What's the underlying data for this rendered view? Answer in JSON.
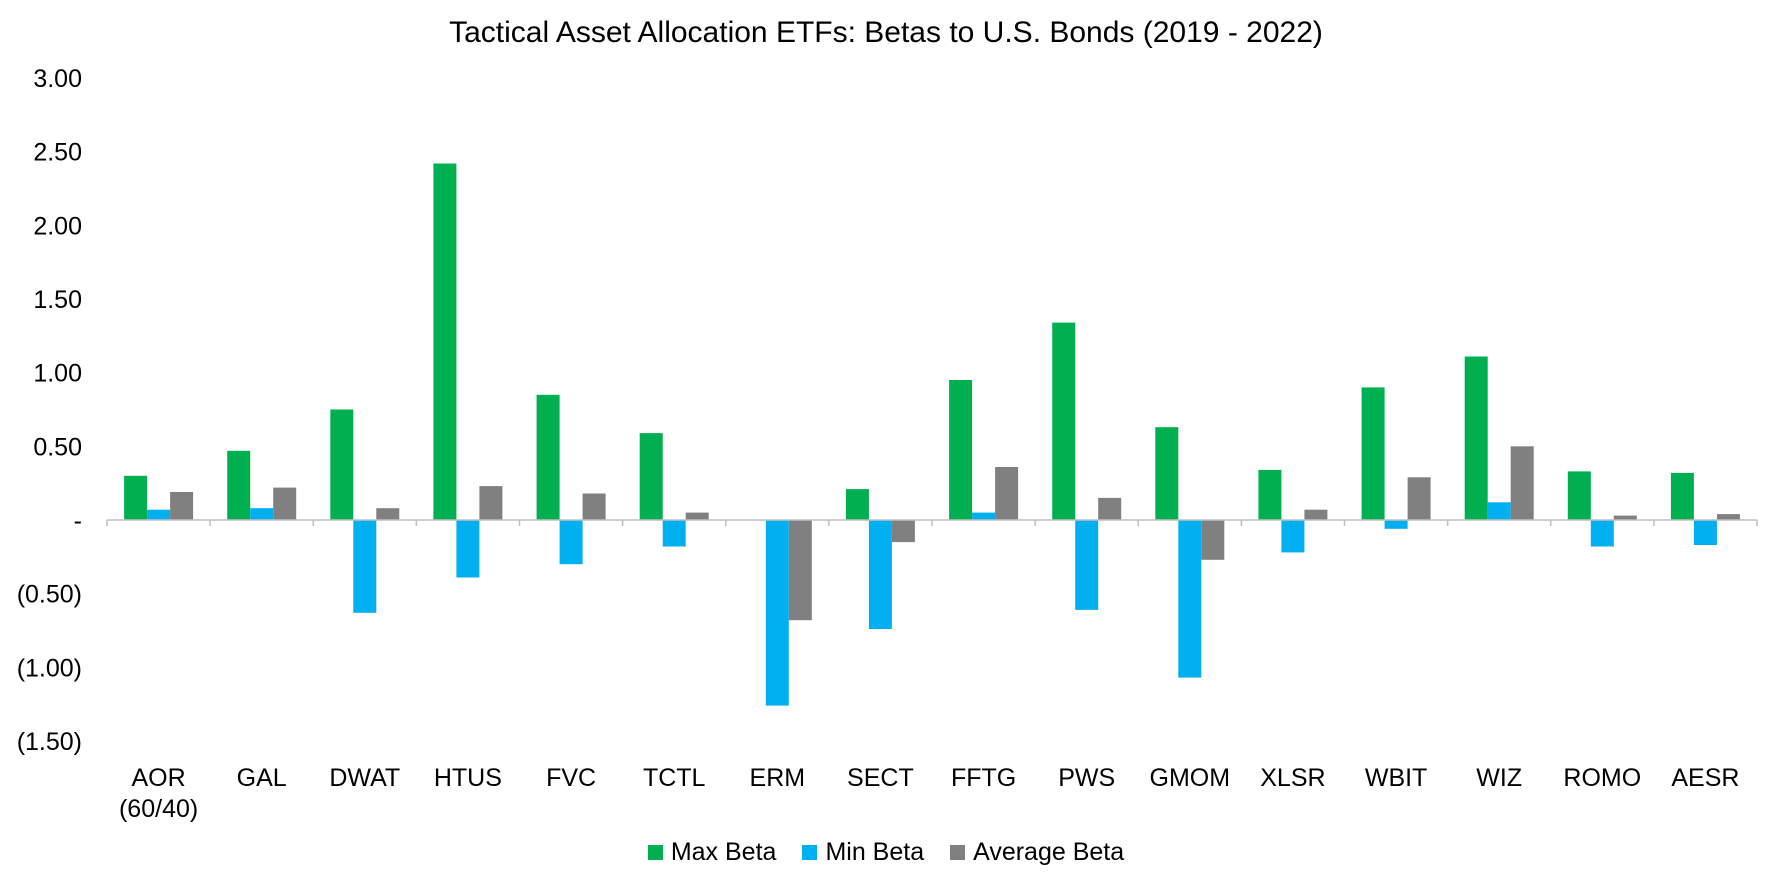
{
  "chart_data": {
    "type": "bar",
    "title": "Tactical Asset Allocation ETFs: Betas to U.S. Bonds (2019 - 2022)",
    "xlabel": "",
    "ylabel": "",
    "ylim": [
      -1.5,
      3.0
    ],
    "yticks": [
      3.0,
      2.5,
      2.0,
      1.5,
      1.0,
      0.5,
      0,
      -0.5,
      -1.0,
      -1.5
    ],
    "ytick_labels": [
      "3.00",
      "2.50",
      "2.00",
      "1.50",
      "1.00",
      "0.50",
      "-",
      "(0.50)",
      "(1.00)",
      "(1.50)"
    ],
    "grid": false,
    "legend_position": "bottom",
    "categories": [
      "AOR (60/40)",
      "GAL",
      "DWAT",
      "HTUS",
      "FVC",
      "TCTL",
      "ERM",
      "SECT",
      "FFTG",
      "PWS",
      "GMOM",
      "XLSR",
      "WBIT",
      "WIZ",
      "ROMO",
      "AESR"
    ],
    "category_lines": [
      [
        "AOR",
        "(60/40)"
      ],
      [
        "GAL"
      ],
      [
        "DWAT"
      ],
      [
        "HTUS"
      ],
      [
        "FVC"
      ],
      [
        "TCTL"
      ],
      [
        "ERM"
      ],
      [
        "SECT"
      ],
      [
        "FFTG"
      ],
      [
        "PWS"
      ],
      [
        "GMOM"
      ],
      [
        "XLSR"
      ],
      [
        "WBIT"
      ],
      [
        "WIZ"
      ],
      [
        "ROMO"
      ],
      [
        "AESR"
      ]
    ],
    "series": [
      {
        "name": "Max Beta",
        "color": "#00b050",
        "values": [
          0.3,
          0.47,
          0.75,
          2.42,
          0.85,
          0.59,
          0.0,
          0.21,
          0.95,
          1.34,
          0.63,
          0.34,
          0.9,
          1.11,
          0.33,
          0.32
        ]
      },
      {
        "name": "Min Beta",
        "color": "#00b0f0",
        "values": [
          0.07,
          0.08,
          -0.63,
          -0.39,
          -0.3,
          -0.18,
          -1.26,
          -0.74,
          0.05,
          -0.61,
          -1.07,
          -0.22,
          -0.06,
          0.12,
          -0.18,
          -0.17
        ]
      },
      {
        "name": "Average Beta",
        "color": "#808080",
        "values": [
          0.19,
          0.22,
          0.08,
          0.23,
          0.18,
          0.05,
          -0.68,
          -0.15,
          0.36,
          0.15,
          -0.27,
          0.07,
          0.29,
          0.5,
          0.03,
          0.04
        ]
      }
    ]
  }
}
